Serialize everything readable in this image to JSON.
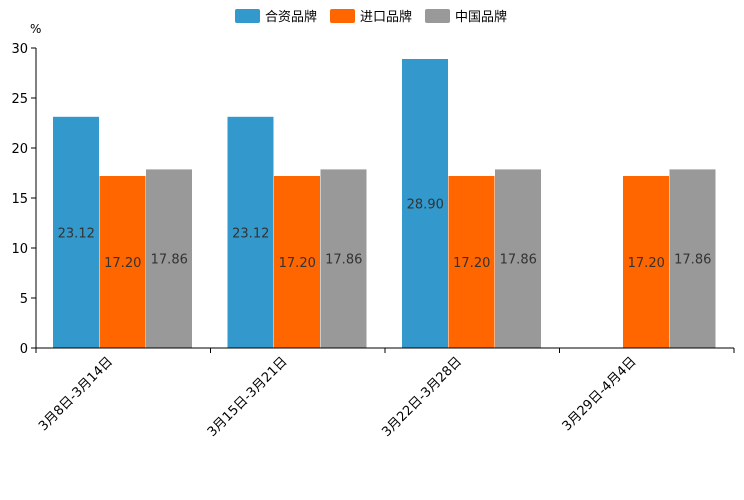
{
  "chart_data": {
    "type": "bar",
    "title": "",
    "xlabel": "",
    "ylabel": "%",
    "ylim": [
      0,
      30
    ],
    "yticks": [
      0,
      5,
      10,
      15,
      20,
      25,
      30
    ],
    "grid": false,
    "legend_position": "top-center",
    "categories": [
      "3月8日-3月14日",
      "3月15日-3月21日",
      "3月22日-3月28日",
      "3月29日-4月4日"
    ],
    "series": [
      {
        "name": "合资品牌",
        "color": "#3399cc",
        "values": [
          23.12,
          23.12,
          28.9,
          null
        ],
        "labels": [
          "23.12",
          "23.12",
          "28.90",
          ""
        ]
      },
      {
        "name": "进口品牌",
        "color": "#ff6600",
        "values": [
          17.2,
          17.2,
          17.2,
          17.2
        ],
        "labels": [
          "17.20",
          "17.20",
          "17.20",
          "17.20"
        ]
      },
      {
        "name": "中国品牌",
        "color": "#999999",
        "values": [
          17.86,
          17.86,
          17.86,
          17.86
        ],
        "labels": [
          "17.86",
          "17.86",
          "17.86",
          "17.86"
        ]
      }
    ],
    "colors": {
      "axis": "#000000",
      "tick_text": "#000000",
      "data_label": "#333333"
    }
  }
}
